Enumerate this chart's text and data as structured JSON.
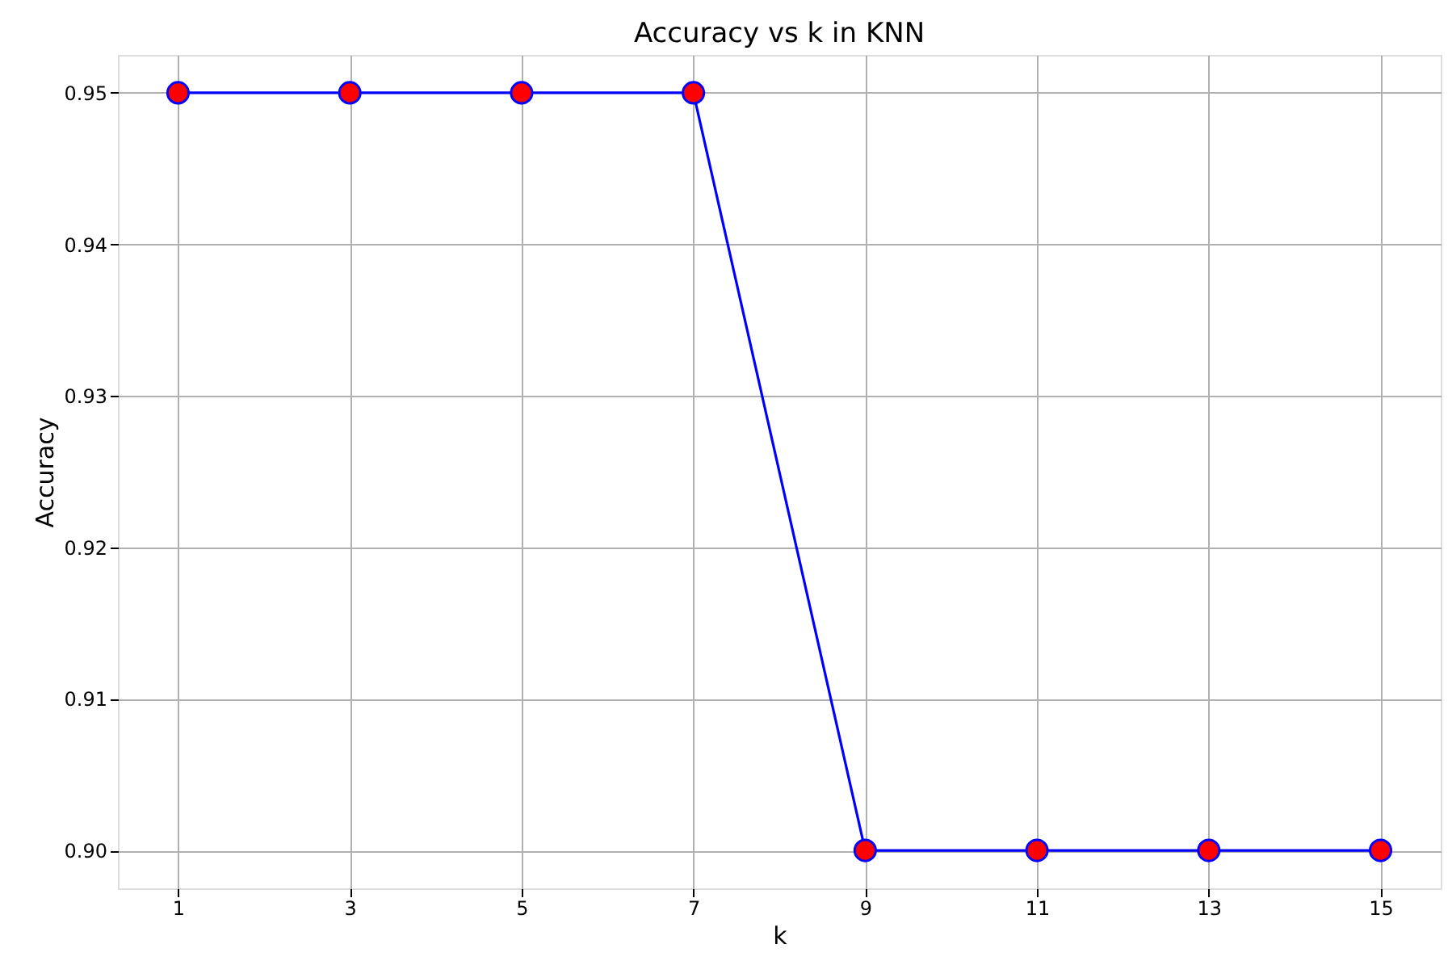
{
  "chart_data": {
    "type": "line",
    "title": "Accuracy vs k in KNN",
    "xlabel": "k",
    "ylabel": "Accuracy",
    "x": [
      1,
      3,
      5,
      7,
      9,
      11,
      13,
      15
    ],
    "series": [
      {
        "color": "#0000ff",
        "colors": [
          "#ff0000",
          "#ff0000",
          "#ff0000",
          "#ff0000",
          "#ff0000",
          "#ff0000",
          "#ff0000",
          "#ff0000"
        ],
        "values": [
          0.95,
          0.95,
          0.95,
          0.95,
          0.9,
          0.9,
          0.9,
          0.9
        ]
      }
    ],
    "xlim": [
      0.3,
      15.7
    ],
    "xticks": [
      1,
      3,
      5,
      7,
      9,
      11,
      13,
      15
    ],
    "ylim": [
      0.8975,
      0.9525
    ],
    "yticks": [
      {
        "value": 0.9,
        "label": "0.90"
      },
      {
        "value": 0.91,
        "label": "0.91"
      },
      {
        "value": 0.92,
        "label": "0.92"
      },
      {
        "value": 0.93,
        "label": "0.93"
      },
      {
        "value": 0.94,
        "label": "0.94"
      },
      {
        "value": 0.95,
        "label": "0.95"
      }
    ],
    "grid": true,
    "marker": "circle",
    "line_style": "solid"
  }
}
